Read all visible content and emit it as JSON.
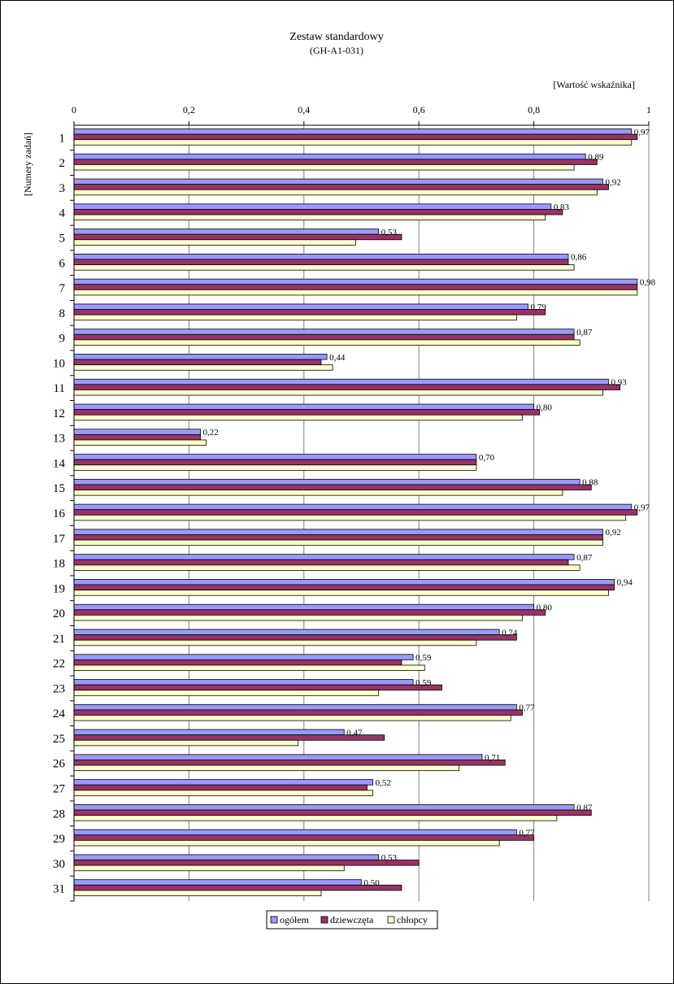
{
  "chart_data": {
    "type": "bar",
    "orientation": "horizontal",
    "title": "Zestaw standardowy",
    "subtitle": "(GH-A1-031)",
    "xlabel": "[Wartość wskaźnika]",
    "ylabel": "[Numery zadań]",
    "xlim": [
      0,
      1
    ],
    "x_ticks": [
      "0",
      "0,2",
      "0,4",
      "0,6",
      "0,8",
      "1"
    ],
    "grid": "vertical",
    "legend_position": "bottom",
    "categories": [
      "1",
      "2",
      "3",
      "4",
      "5",
      "6",
      "7",
      "8",
      "9",
      "10",
      "11",
      "12",
      "13",
      "14",
      "15",
      "16",
      "17",
      "18",
      "19",
      "20",
      "21",
      "22",
      "23",
      "24",
      "25",
      "26",
      "27",
      "28",
      "29",
      "30",
      "31"
    ],
    "series": [
      {
        "name": "ogółem",
        "color": "#9999ff",
        "values": [
          0.97,
          0.89,
          0.92,
          0.83,
          0.53,
          0.86,
          0.98,
          0.79,
          0.87,
          0.44,
          0.93,
          0.8,
          0.22,
          0.7,
          0.88,
          0.97,
          0.92,
          0.87,
          0.94,
          0.8,
          0.74,
          0.59,
          0.59,
          0.77,
          0.47,
          0.71,
          0.52,
          0.87,
          0.77,
          0.53,
          0.5
        ]
      },
      {
        "name": "dziewczęta",
        "color": "#993366",
        "values": [
          0.98,
          0.91,
          0.93,
          0.85,
          0.57,
          0.86,
          0.98,
          0.82,
          0.87,
          0.43,
          0.95,
          0.81,
          0.22,
          0.7,
          0.9,
          0.98,
          0.92,
          0.86,
          0.94,
          0.82,
          0.77,
          0.57,
          0.64,
          0.78,
          0.54,
          0.75,
          0.51,
          0.9,
          0.8,
          0.6,
          0.57
        ]
      },
      {
        "name": "chłopcy",
        "color": "#ffffcc",
        "values": [
          0.97,
          0.87,
          0.91,
          0.82,
          0.49,
          0.87,
          0.98,
          0.77,
          0.88,
          0.45,
          0.92,
          0.78,
          0.23,
          0.7,
          0.85,
          0.96,
          0.92,
          0.88,
          0.93,
          0.78,
          0.7,
          0.61,
          0.53,
          0.76,
          0.39,
          0.67,
          0.52,
          0.84,
          0.74,
          0.47,
          0.43
        ]
      }
    ],
    "data_labels": [
      "0,97",
      "0,89",
      "0,92",
      "0,83",
      "0,53",
      "0,86",
      "0,98",
      "0,79",
      "0,87",
      "0,44",
      "0,93",
      "0,80",
      "0,22",
      "0,70",
      "0,88",
      "0,97",
      "0,92",
      "0,87",
      "0,94",
      "0,80",
      "0,74",
      "0,59",
      "0,59",
      "0,77",
      "0,47",
      "0,71",
      "0,52",
      "0,87",
      "0,77",
      "0,53",
      "0,50"
    ],
    "data_labels_series": "ogółem"
  }
}
